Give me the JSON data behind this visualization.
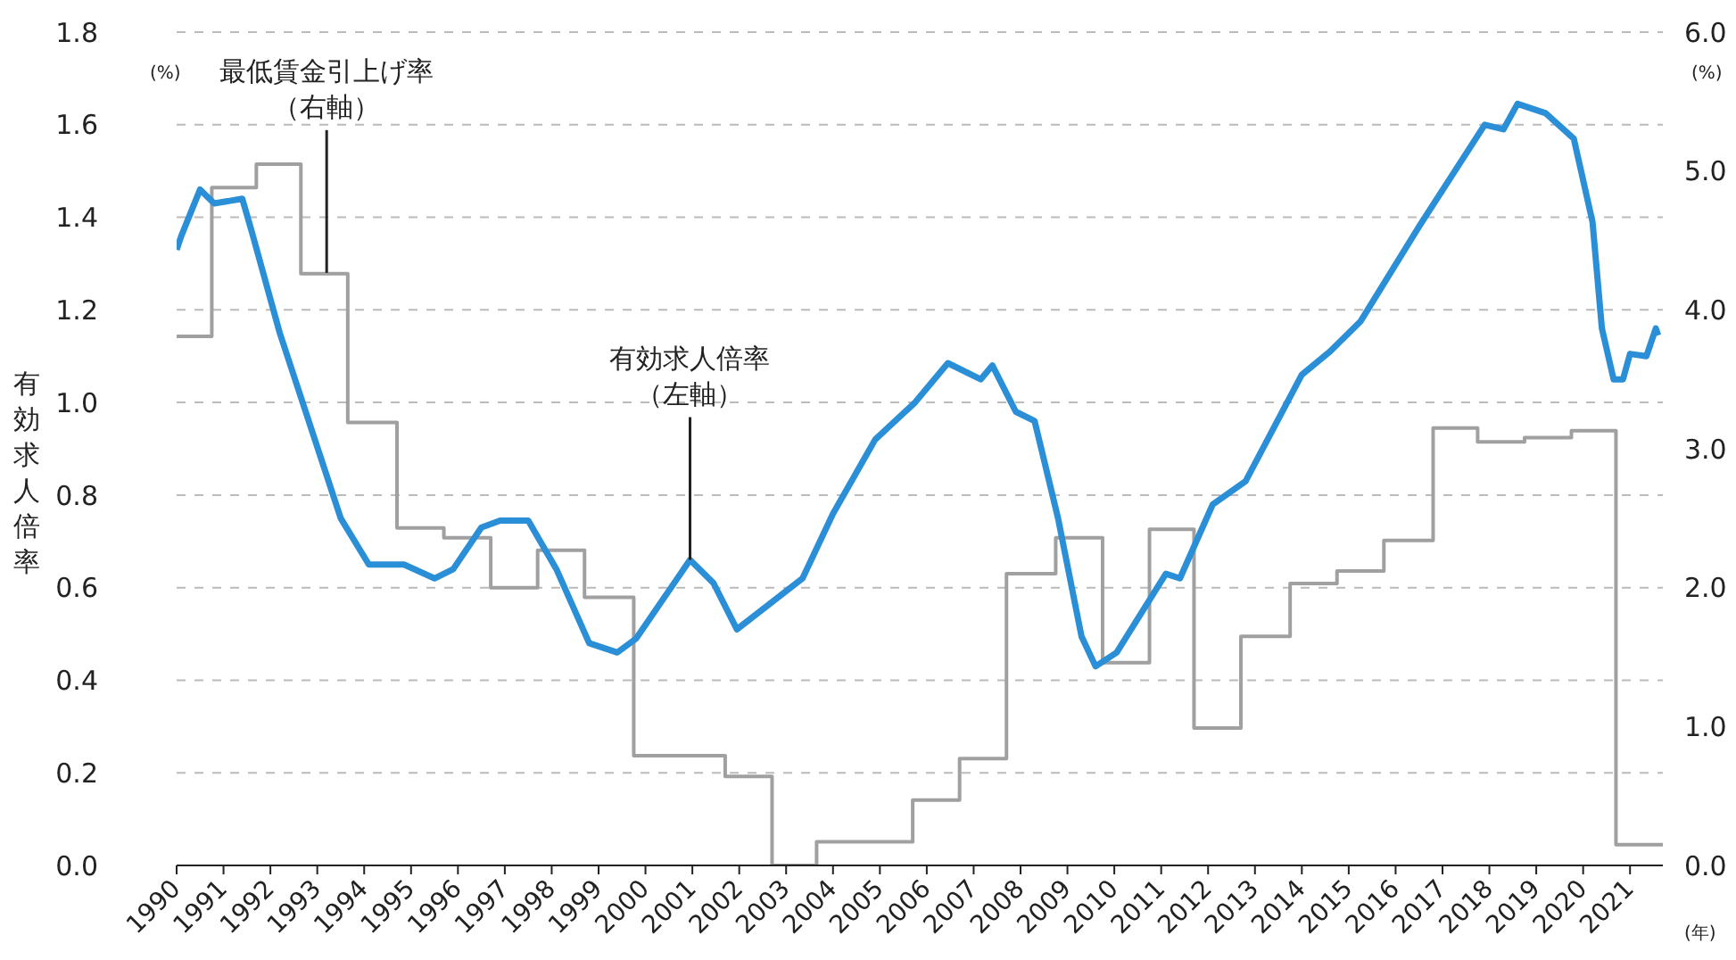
{
  "chart_data": {
    "type": "line",
    "ylabel": "有効求人倍率",
    "y2label": "(%)",
    "xlabel": "(年)",
    "annotations": [
      {
        "text": "最低賃金引上げ率（右軸）",
        "x": 1993.2,
        "y": 1.28
      },
      {
        "text": "有効求人倍率（左軸）",
        "x": 2000.95,
        "y": 0.66
      },
      "(%)"
    ],
    "xlim": [
      1990,
      2021.7
    ],
    "xticks": [
      1990,
      1991,
      1992,
      1993,
      1994,
      1995,
      1996,
      1997,
      1998,
      1999,
      2000,
      2001,
      2002,
      2003,
      2004,
      2005,
      2006,
      2007,
      2008,
      2009,
      2010,
      2011,
      2012,
      2013,
      2014,
      2015,
      2016,
      2017,
      2018,
      2019,
      2020,
      2021
    ],
    "ylim": [
      0,
      1.8
    ],
    "yticks": [
      {
        "value": 0,
        "label": "0.0"
      },
      {
        "value": 0.2,
        "label": "0.2"
      },
      {
        "value": 0.4,
        "label": "0.4"
      },
      {
        "value": 0.6,
        "label": "0.6"
      },
      {
        "value": 0.8,
        "label": "0.8"
      },
      {
        "value": 1,
        "label": "1.0"
      },
      {
        "value": 1.2,
        "label": "1.2"
      },
      {
        "value": 1.4,
        "label": "1.4"
      },
      {
        "value": 1.6,
        "label": "1.6"
      },
      {
        "value": 1.8,
        "label": "1.8"
      }
    ],
    "y2lim": [
      0,
      6
    ],
    "y2ticks": [
      {
        "value": 0,
        "label": "0.0"
      },
      {
        "value": 1,
        "label": "1.0"
      },
      {
        "value": 2,
        "label": "2.0"
      },
      {
        "value": 3,
        "label": "3.0"
      },
      {
        "value": 4,
        "label": "4.0"
      },
      {
        "value": 5,
        "label": "5.0"
      },
      {
        "value": 6,
        "label": "6.0"
      }
    ],
    "grid": "y",
    "legend": false,
    "marker": "none",
    "series": [
      {
        "color": "#2a8fd6",
        "x": [
          1990,
          1990.1,
          1990.5,
          1990.8,
          1991.4,
          1991.6,
          1992.2,
          1993.5,
          1994.1,
          1994.85,
          1995.5,
          1995.9,
          1996.5,
          1996.9,
          1997.5,
          1998.1,
          1998.8,
          1999.4,
          1999.8,
          2000.95,
          2001.45,
          2001.95,
          2003.35,
          2004,
          2004.9,
          2005.75,
          2006.45,
          2007.15,
          2007.4,
          2007.9,
          2008.3,
          2008.8,
          2009.3,
          2009.6,
          2010.05,
          2011.1,
          2011.4,
          2012.1,
          2012.8,
          2014,
          2014.6,
          2015.25,
          2016.5,
          2017.9,
          2018.3,
          2018.6,
          2019.2,
          2019.8,
          2020.2,
          2020.4,
          2020.65,
          2020.85,
          2021,
          2021.35,
          2021.55,
          2021.6
        ],
        "values": [
          1.33,
          1.36,
          1.46,
          1.43,
          1.44,
          1.37,
          1.15,
          0.75,
          0.65,
          0.65,
          0.62,
          0.64,
          0.73,
          0.745,
          0.745,
          0.64,
          0.48,
          0.46,
          0.49,
          0.66,
          0.61,
          0.51,
          0.62,
          0.76,
          0.92,
          1.0,
          1.085,
          1.05,
          1.08,
          0.98,
          0.96,
          0.75,
          0.495,
          0.43,
          0.46,
          0.63,
          0.62,
          0.78,
          0.83,
          1.06,
          1.11,
          1.175,
          1.38,
          1.6,
          1.59,
          1.645,
          1.625,
          1.57,
          1.39,
          1.16,
          1.05,
          1.05,
          1.105,
          1.1,
          1.16,
          1.145
        ]
      },
      {
        "type": "step",
        "axis": "y2",
        "color": "#a0a0a0",
        "x": [
          1990,
          1990.75,
          1991.7,
          1992.65,
          1993.65,
          1994.7,
          1995.7,
          1996.7,
          1997.7,
          1998.7,
          1999.75,
          2001.7,
          2002.7,
          2003.65,
          2005.7,
          2006.7,
          2007.7,
          2008.75,
          2009.75,
          2010.75,
          2011.7,
          2012.7,
          2013.75,
          2014.75,
          2015.75,
          2016.8,
          2017.75,
          2018.75,
          2019.75,
          2020.7,
          2021.7
        ],
        "values": [
          3.81,
          4.88,
          5.05,
          4.26,
          3.19,
          2.43,
          2.36,
          2.0,
          2.27,
          1.93,
          0.79,
          0.64,
          0,
          0.17,
          0.47,
          0.77,
          2.1,
          2.36,
          1.46,
          2.42,
          0.99,
          1.65,
          2.03,
          2.12,
          2.34,
          3.15,
          3.05,
          3.08,
          3.13,
          0.15,
          0.15
        ]
      }
    ]
  }
}
